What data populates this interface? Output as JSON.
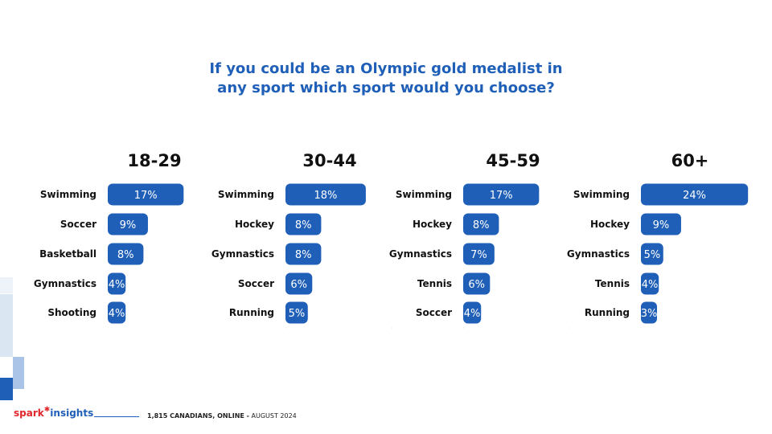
{
  "title": {
    "line1": "If you could be an Olympic gold medalist in",
    "line2": "any sport which sport would you choose?"
  },
  "footer": {
    "brand_part1": "spark",
    "brand_part2": "insights",
    "note_strong": "1,815 CANADIANS, ONLINE -",
    "note_rest": " AUGUST 2024"
  },
  "colors": {
    "bar": "#1f5fb8",
    "title": "#1f5fb8",
    "deco_light": "#dbe6f3",
    "deco_mid": "#a9c4e6",
    "deco_dark": "#1f5fb8"
  },
  "chart_data": [
    {
      "type": "bar",
      "title": "18-29",
      "categories": [
        "Swimming",
        "Soccer",
        "Basketball",
        "Gymnastics",
        "Shooting"
      ],
      "values": [
        17,
        9,
        8,
        4,
        4
      ],
      "labels": [
        "17%",
        "9%",
        "8%",
        "4%",
        "4%"
      ]
    },
    {
      "type": "bar",
      "title": "30-44",
      "categories": [
        "Swimming",
        "Hockey",
        "Gymnastics",
        "Soccer",
        "Running"
      ],
      "values": [
        18,
        8,
        8,
        6,
        5
      ],
      "labels": [
        "18%",
        "8%",
        "8%",
        "6%",
        "5%"
      ]
    },
    {
      "type": "bar",
      "title": "45-59",
      "categories": [
        "Swimming",
        "Hockey",
        "Gymnastics",
        "Tennis",
        "Soccer"
      ],
      "values": [
        17,
        8,
        7,
        6,
        4
      ],
      "labels": [
        "17%",
        "8%",
        "7%",
        "6%",
        "4%"
      ]
    },
    {
      "type": "bar",
      "title": "60+",
      "categories": [
        "Swimming",
        "Hockey",
        "Gymnastics",
        "Tennis",
        "Running"
      ],
      "values": [
        24,
        9,
        5,
        4,
        3
      ],
      "labels": [
        "24%",
        "9%",
        "5%",
        "4%",
        "3%"
      ]
    }
  ]
}
